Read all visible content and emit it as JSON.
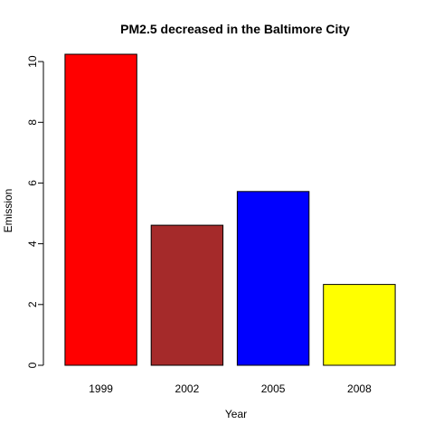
{
  "chart_data": {
    "type": "bar",
    "title": "PM2.5 decreased in the Baltimore City",
    "xlabel": "Year",
    "ylabel": "Emission",
    "categories": [
      "1999",
      "2002",
      "2005",
      "2008"
    ],
    "values": [
      10.24,
      4.61,
      5.72,
      2.66
    ],
    "colors": [
      "#ff0000",
      "#a52a2a",
      "#0000ff",
      "#ffff00"
    ],
    "ylim": [
      0,
      10.24
    ],
    "yticks": [
      0,
      2,
      4,
      6,
      8,
      10
    ],
    "grid": false,
    "legend": "none"
  }
}
